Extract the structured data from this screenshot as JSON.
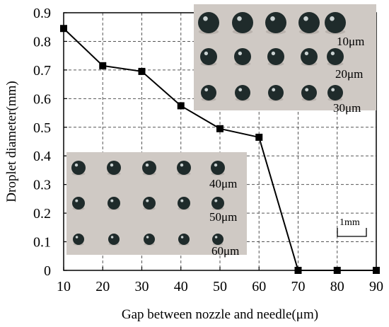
{
  "chart_data": {
    "type": "line",
    "xlabel": "Gap between nozzle and needle(μm)",
    "ylabel": "Droplet diameter(mm)",
    "x": [
      10,
      20,
      30,
      40,
      50,
      60,
      70,
      80,
      90
    ],
    "series": [
      {
        "values": [
          0.845,
          0.715,
          0.695,
          0.575,
          0.495,
          0.465,
          0,
          0,
          0
        ]
      }
    ],
    "xlim": [
      10,
      90
    ],
    "ylim": [
      0,
      0.9
    ],
    "xticks": [
      "10",
      "20",
      "30",
      "40",
      "50",
      "60",
      "70",
      "80",
      "90"
    ],
    "yticks": [
      "0",
      "0.1",
      "0.2",
      "0.3",
      "0.4",
      "0.5",
      "0.6",
      "0.7",
      "0.8",
      "0.9"
    ],
    "grid": true,
    "marker": "square",
    "line_color": "#000000"
  },
  "insets": {
    "top_right_labels": [
      "10μm",
      "20μm",
      "30μm"
    ],
    "bottom_left_labels": [
      "40μm",
      "50μm",
      "60μm"
    ],
    "scale_bar_label": "1mm",
    "photo_background": "#cfc9c4",
    "droplet_color": "#1f2b2b"
  }
}
